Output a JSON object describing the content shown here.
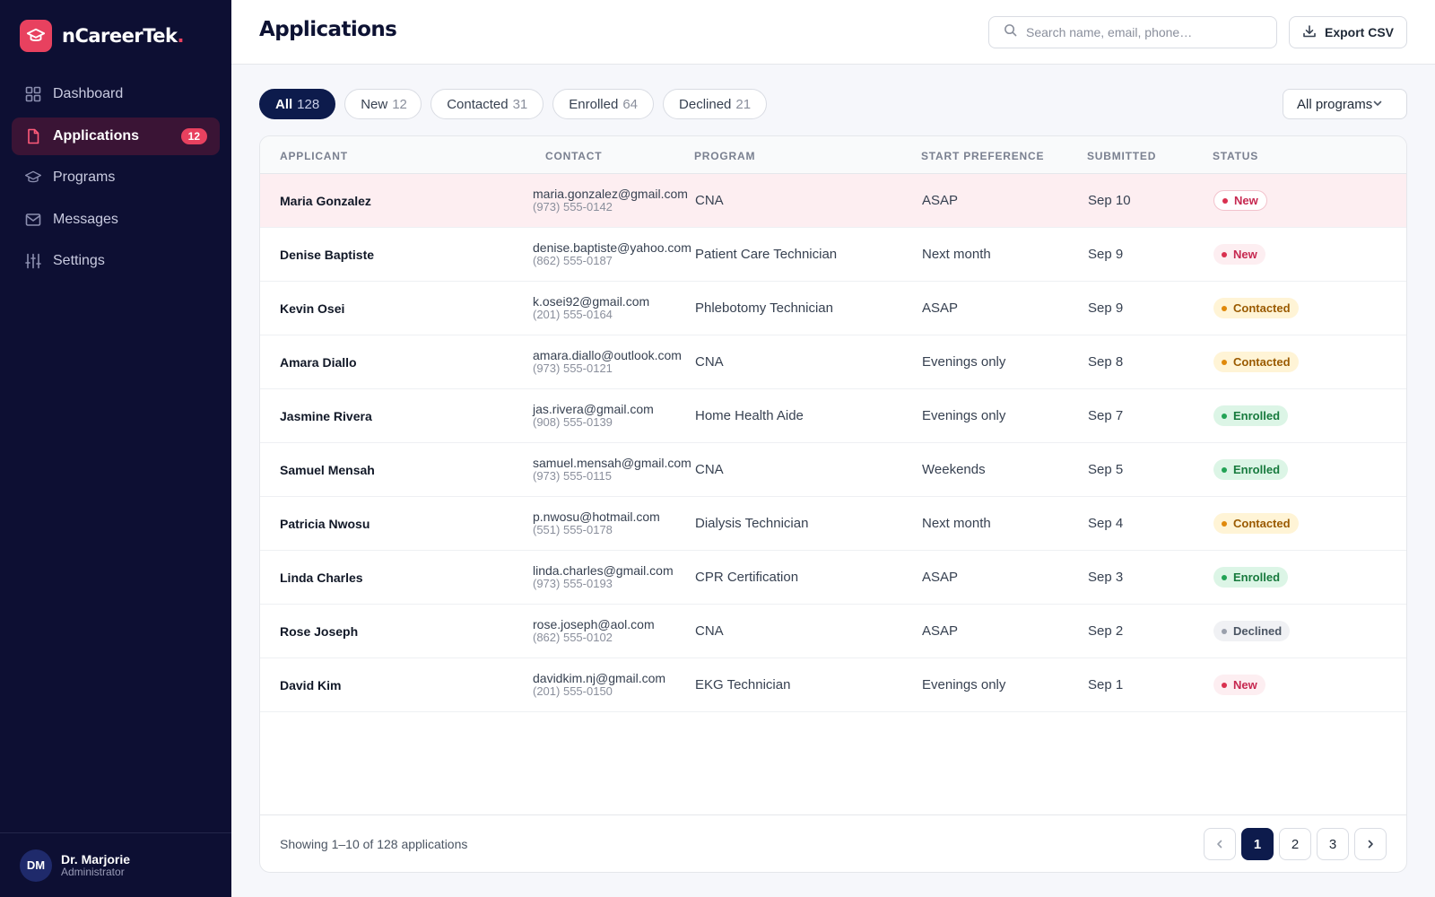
{
  "brand": {
    "name": "nCareerTek",
    "dot": "."
  },
  "sidebar": {
    "items": [
      {
        "label": "Dashboard",
        "icon": "grid-icon"
      },
      {
        "label": "Applications",
        "icon": "document-icon",
        "badge": "12",
        "active": true
      },
      {
        "label": "Programs",
        "icon": "graduation-cap-icon"
      },
      {
        "label": "Messages",
        "icon": "mail-icon"
      },
      {
        "label": "Settings",
        "icon": "sliders-icon"
      }
    ],
    "user": {
      "initials": "DM",
      "name": "Dr. Marjorie",
      "role": "Administrator"
    }
  },
  "header": {
    "title": "Applications",
    "search_placeholder": "Search name, email, phone…",
    "export_label": "Export CSV"
  },
  "filters": [
    {
      "label": "All",
      "count": "128",
      "active": true
    },
    {
      "label": "New",
      "count": "12"
    },
    {
      "label": "Contacted",
      "count": "31"
    },
    {
      "label": "Enrolled",
      "count": "64"
    },
    {
      "label": "Declined",
      "count": "21"
    }
  ],
  "program_filter": "All programs",
  "table": {
    "columns": [
      "APPLICANT",
      "CONTACT",
      "PROGRAM",
      "START PREFERENCE",
      "SUBMITTED",
      "STATUS"
    ],
    "rows": [
      {
        "name": "Maria Gonzalez",
        "email": "maria.gonzalez@gmail.com",
        "phone": "(973) 555-0142",
        "program": "CNA",
        "start": "ASAP",
        "submitted": "Sep 10",
        "status": "New",
        "status_kind": "new"
      },
      {
        "name": "Denise Baptiste",
        "email": "denise.baptiste@yahoo.com",
        "phone": "(862) 555-0187",
        "program": "Patient Care Technician",
        "start": "Next month",
        "submitted": "Sep 9",
        "status": "New",
        "status_kind": "new"
      },
      {
        "name": "Kevin Osei",
        "email": "k.osei92@gmail.com",
        "phone": "(201) 555-0164",
        "program": "Phlebotomy Technician",
        "start": "ASAP",
        "submitted": "Sep 9",
        "status": "Contacted",
        "status_kind": "contacted"
      },
      {
        "name": "Amara Diallo",
        "email": "amara.diallo@outlook.com",
        "phone": "(973) 555-0121",
        "program": "CNA",
        "start": "Evenings only",
        "submitted": "Sep 8",
        "status": "Contacted",
        "status_kind": "contacted"
      },
      {
        "name": "Jasmine Rivera",
        "email": "jas.rivera@gmail.com",
        "phone": "(908) 555-0139",
        "program": "Home Health Aide",
        "start": "Evenings only",
        "submitted": "Sep 7",
        "status": "Enrolled",
        "status_kind": "enrolled"
      },
      {
        "name": "Samuel Mensah",
        "email": "samuel.mensah@gmail.com",
        "phone": "(973) 555-0115",
        "program": "CNA",
        "start": "Weekends",
        "submitted": "Sep 5",
        "status": "Enrolled",
        "status_kind": "enrolled"
      },
      {
        "name": "Patricia Nwosu",
        "email": "p.nwosu@hotmail.com",
        "phone": "(551) 555-0178",
        "program": "Dialysis Technician",
        "start": "Next month",
        "submitted": "Sep 4",
        "status": "Contacted",
        "status_kind": "contacted"
      },
      {
        "name": "Linda Charles",
        "email": "linda.charles@gmail.com",
        "phone": "(973) 555-0193",
        "program": "CPR Certification",
        "start": "ASAP",
        "submitted": "Sep 3",
        "status": "Enrolled",
        "status_kind": "enrolled"
      },
      {
        "name": "Rose Joseph",
        "email": "rose.joseph@aol.com",
        "phone": "(862) 555-0102",
        "program": "CNA",
        "start": "ASAP",
        "submitted": "Sep 2",
        "status": "Declined",
        "status_kind": "declined"
      },
      {
        "name": "David Kim",
        "email": "davidkim.nj@gmail.com",
        "phone": "(201) 555-0150",
        "program": "EKG Technician",
        "start": "Evenings only",
        "submitted": "Sep 1",
        "status": "New",
        "status_kind": "new"
      }
    ]
  },
  "footer": {
    "showing": "Showing 1–10 of 128 applications",
    "pages": [
      "1",
      "2",
      "3"
    ],
    "current_page": "1"
  },
  "colors": {
    "sidebar_bg": "#0d0f33",
    "accent": "#e8415f",
    "primary": "#0d1b4c",
    "highlight_row": "#fdeef1"
  }
}
